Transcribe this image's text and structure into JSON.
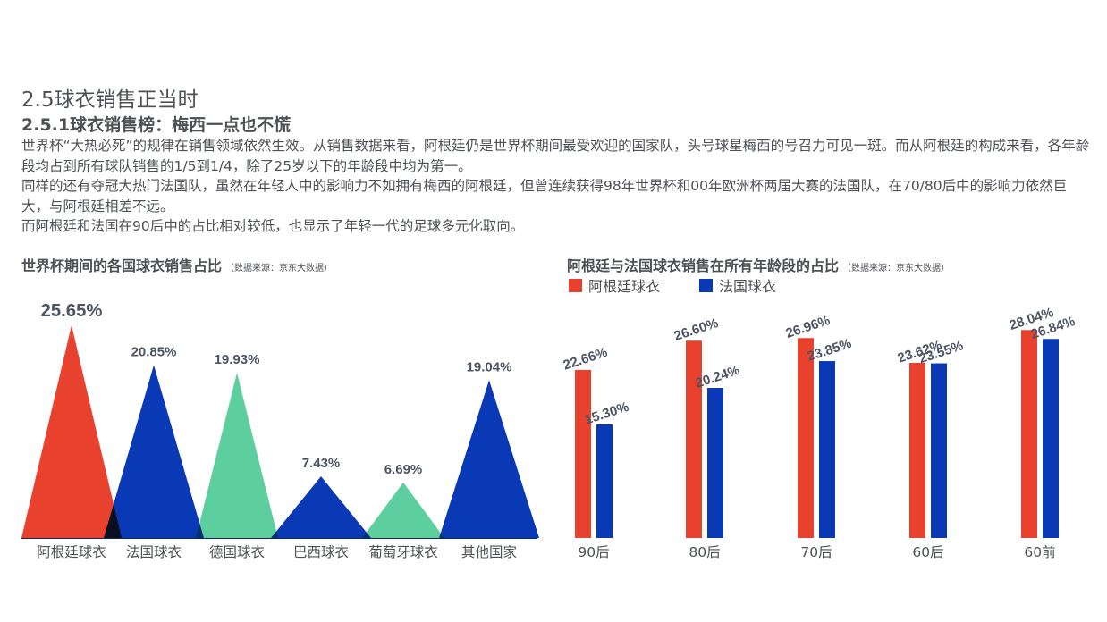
{
  "heading": "2.5球衣销售正当时",
  "subheading": "2.5.1球衣销售榜：梅西一点也不慌",
  "paragraph": "世界杯“大热必死”的规律在销售领域依然生效。从销售数据来看，阿根廷仍是世界杯期间最受欢迎的国家队，头号球星梅西的号召力可见一斑。而从阿根廷的构成来看，各年龄段均占到所有球队销售的1/5到1/4，除了25岁以下的年龄段中均为第一。\n同样的还有夺冠大热门法国队，虽然在年轻人中的影响力不如拥有梅西的阿根廷，但曾连续获得98年世界杯和00年欧洲杯两届大赛的法国队，在70/80后中的影响力依然巨大，与阿根廷相差不远。\n而阿根廷和法国在90后中的占比相对较低，也显示了年轻一代的足球多元化取向。",
  "chart_data": [
    {
      "type": "bar",
      "shape": "triangle",
      "title": "世界杯期间的各国球衣销售占比",
      "source_note": "（数据来源：京东大数据）",
      "categories": [
        "阿根廷球衣",
        "法国球衣",
        "德国球衣",
        "巴西球衣",
        "葡萄牙球衣",
        "其他国家"
      ],
      "values": [
        25.65,
        20.85,
        19.93,
        7.43,
        6.69,
        19.04
      ],
      "labels": [
        "25.65%",
        "20.85%",
        "19.93%",
        "7.43%",
        "6.69%",
        "19.04%"
      ],
      "colors": [
        "#e8412e",
        "#0a39b6",
        "#5dcf9f",
        "#0a39b6",
        "#5dcf9f",
        "#0a39b6"
      ],
      "ylim": [
        0,
        26
      ],
      "grid": false
    },
    {
      "type": "bar",
      "title": "阿根廷与法国球衣销售在所有年龄段的占比",
      "source_note": "（数据来源：京东大数据）",
      "categories": [
        "90后",
        "80后",
        "70后",
        "60后",
        "60前"
      ],
      "series": [
        {
          "name": "阿根廷球衣",
          "color": "#e8412e",
          "values": [
            22.66,
            26.6,
            26.96,
            23.62,
            28.04
          ],
          "labels": [
            "22.66%",
            "26.60%",
            "26.96%",
            "23.62%",
            "28.04%"
          ]
        },
        {
          "name": "法国球衣",
          "color": "#0a39b6",
          "values": [
            15.3,
            20.24,
            23.85,
            23.55,
            26.84
          ],
          "labels": [
            "15.30%",
            "20.24%",
            "23.85%",
            "23.55%",
            "26.84%"
          ]
        }
      ],
      "legend_position": "top-left",
      "grid": false
    }
  ]
}
